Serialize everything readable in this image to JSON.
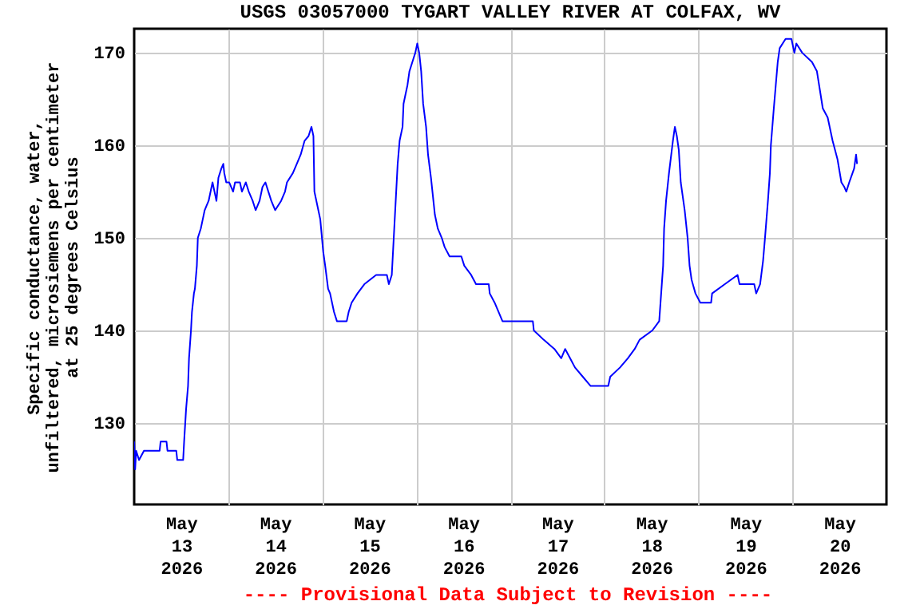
{
  "chart_data": {
    "type": "line",
    "title": "USGS 03057000 TYGART VALLEY RIVER AT COLFAX, WV",
    "ylabel": "Specific conductance, water,\nunfiltered, microsiemens per centimeter\nat 25 degrees Celsius",
    "annotations": [
      "---- Provisional Data Subject to Revision ----"
    ],
    "x": [
      "2026-05-13T00:00",
      "2026-05-13T00:15",
      "2026-05-13T00:30",
      "2026-05-13T01:15",
      "2026-05-13T02:30",
      "2026-05-13T06:30",
      "2026-05-13T06:45",
      "2026-05-13T08:15",
      "2026-05-13T08:30",
      "2026-05-13T10:45",
      "2026-05-13T11:00",
      "2026-05-13T12:30",
      "2026-05-13T12:45",
      "2026-05-13T13:15",
      "2026-05-13T13:45",
      "2026-05-13T14:00",
      "2026-05-13T14:30",
      "2026-05-13T14:45",
      "2026-05-13T15:15",
      "2026-05-13T15:30",
      "2026-05-13T16:00",
      "2026-05-13T16:15",
      "2026-05-13T17:00",
      "2026-05-13T17:30",
      "2026-05-13T18:00",
      "2026-05-13T18:30",
      "2026-05-13T19:00",
      "2026-05-13T19:30",
      "2026-05-13T20:00",
      "2026-05-13T20:45",
      "2026-05-13T21:00",
      "2026-05-13T21:30",
      "2026-05-13T22:15",
      "2026-05-13T22:45",
      "2026-05-13T23:00",
      "2026-05-13T23:30",
      "2026-05-14T00:15",
      "2026-05-14T01:15",
      "2026-05-14T01:45",
      "2026-05-14T03:00",
      "2026-05-14T03:30",
      "2026-05-14T04:30",
      "2026-05-14T05:15",
      "2026-05-14T06:15",
      "2026-05-14T07:00",
      "2026-05-14T08:00",
      "2026-05-14T08:45",
      "2026-05-14T09:30",
      "2026-05-14T10:15",
      "2026-05-14T11:00",
      "2026-05-14T12:00",
      "2026-05-14T13:30",
      "2026-05-14T14:30",
      "2026-05-14T15:00",
      "2026-05-14T16:30",
      "2026-05-14T17:30",
      "2026-05-14T18:30",
      "2026-05-14T19:30",
      "2026-05-14T20:30",
      "2026-05-14T21:15",
      "2026-05-14T21:45",
      "2026-05-14T22:00",
      "2026-05-14T23:00",
      "2026-05-14T23:30",
      "2026-05-15T00:15",
      "2026-05-15T00:45",
      "2026-05-15T01:30",
      "2026-05-15T02:00",
      "2026-05-15T03:00",
      "2026-05-15T03:45",
      "2026-05-15T06:15",
      "2026-05-15T06:45",
      "2026-05-15T07:30",
      "2026-05-15T09:00",
      "2026-05-15T10:45",
      "2026-05-15T13:45",
      "2026-05-15T16:30",
      "2026-05-15T17:00",
      "2026-05-15T17:45",
      "2026-05-15T18:15",
      "2026-05-15T18:45",
      "2026-05-15T19:15",
      "2026-05-15T19:45",
      "2026-05-15T20:30",
      "2026-05-15T20:45",
      "2026-05-15T21:15",
      "2026-05-15T21:45",
      "2026-05-15T22:15",
      "2026-05-15T23:00",
      "2026-05-15T23:45",
      "2026-05-16T00:15",
      "2026-05-16T00:45",
      "2026-05-16T01:15",
      "2026-05-16T01:45",
      "2026-05-16T02:30",
      "2026-05-16T03:00",
      "2026-05-16T03:45",
      "2026-05-16T04:15",
      "2026-05-16T04:45",
      "2026-05-16T05:30",
      "2026-05-16T06:30",
      "2026-05-16T07:15",
      "2026-05-16T08:30",
      "2026-05-16T11:30",
      "2026-05-16T12:15",
      "2026-05-16T14:00",
      "2026-05-16T15:15",
      "2026-05-16T18:30",
      "2026-05-16T18:45",
      "2026-05-16T20:00",
      "2026-05-16T22:00",
      "2026-05-17T05:45",
      "2026-05-17T06:00",
      "2026-05-17T08:30",
      "2026-05-17T11:15",
      "2026-05-17T13:00",
      "2026-05-17T14:00",
      "2026-05-17T15:15",
      "2026-05-17T16:30",
      "2026-05-17T18:30",
      "2026-05-17T20:30",
      "2026-05-18T01:00",
      "2026-05-18T01:30",
      "2026-05-18T04:00",
      "2026-05-18T06:00",
      "2026-05-18T07:45",
      "2026-05-18T09:00",
      "2026-05-18T12:15",
      "2026-05-18T14:00",
      "2026-05-18T14:30",
      "2026-05-18T15:00",
      "2026-05-18T15:15",
      "2026-05-18T15:45",
      "2026-05-18T16:30",
      "2026-05-18T17:30",
      "2026-05-18T18:00",
      "2026-05-18T18:30",
      "2026-05-18T19:00",
      "2026-05-18T19:30",
      "2026-05-18T20:30",
      "2026-05-18T21:15",
      "2026-05-18T21:45",
      "2026-05-18T22:15",
      "2026-05-18T23:15",
      "2026-05-19T00:30",
      "2026-05-19T03:15",
      "2026-05-19T03:30",
      "2026-05-19T06:45",
      "2026-05-19T10:00",
      "2026-05-19T10:30",
      "2026-05-19T14:15",
      "2026-05-19T14:45",
      "2026-05-19T15:45",
      "2026-05-19T16:30",
      "2026-05-19T17:00",
      "2026-05-19T17:45",
      "2026-05-19T18:15",
      "2026-05-19T18:30",
      "2026-05-19T19:15",
      "2026-05-19T19:45",
      "2026-05-19T20:15",
      "2026-05-19T20:45",
      "2026-05-19T22:15",
      "2026-05-19T23:45",
      "2026-05-20T00:30",
      "2026-05-20T01:00",
      "2026-05-20T02:30",
      "2026-05-20T05:00",
      "2026-05-20T06:15",
      "2026-05-20T07:00",
      "2026-05-20T07:45",
      "2026-05-20T09:00",
      "2026-05-20T10:15",
      "2026-05-20T11:30",
      "2026-05-20T12:30",
      "2026-05-20T13:15",
      "2026-05-20T13:45",
      "2026-05-20T14:30",
      "2026-05-20T15:45",
      "2026-05-20T16:15",
      "2026-05-20T16:30"
    ],
    "series": [
      {
        "color": "#0000ff",
        "values": [
          128,
          125,
          127,
          126,
          127,
          127,
          128,
          128,
          127,
          127,
          126,
          126,
          128,
          131.5,
          134,
          137,
          140,
          142,
          144,
          144.5,
          147,
          150,
          151,
          152,
          153,
          153.5,
          154,
          155,
          156,
          154.5,
          154,
          156.5,
          157.5,
          158,
          157,
          156,
          156,
          155,
          156,
          156,
          155,
          156,
          155,
          154,
          153,
          154,
          155.5,
          156,
          155,
          154,
          153,
          154,
          155,
          156,
          157,
          158,
          159,
          160.5,
          161,
          162,
          161,
          155,
          153,
          152,
          148.5,
          147,
          144.5,
          144,
          142,
          141,
          141,
          142,
          143,
          144,
          145,
          146,
          146,
          145,
          146,
          150,
          154,
          158,
          160.5,
          162,
          164.5,
          165.5,
          166.5,
          168,
          169,
          170,
          171,
          170,
          168,
          164.5,
          162,
          159,
          156.5,
          154.5,
          152.5,
          151,
          150,
          149,
          148,
          148,
          147,
          146,
          145,
          145,
          144,
          143,
          141,
          141,
          140,
          139,
          138,
          137,
          138,
          137,
          136,
          135,
          134,
          134,
          135,
          136,
          137,
          138,
          139,
          140,
          141,
          144,
          147,
          151,
          154,
          157,
          160.5,
          162,
          161,
          159.5,
          156,
          153,
          150,
          147,
          145.5,
          144,
          143,
          143,
          144,
          145,
          146,
          145,
          145,
          144,
          145,
          147.5,
          150,
          154,
          157,
          160,
          164,
          166.5,
          169,
          170.5,
          171.5,
          171.5,
          170,
          171,
          170,
          169,
          168,
          166,
          164,
          163,
          160.5,
          158.5,
          156,
          155.5,
          155,
          156,
          157.5,
          159,
          158
        ]
      }
    ],
    "xlim": [
      "2026-05-13T00:00",
      "2026-05-21T00:00"
    ],
    "xticks": [
      {
        "value": "2026-05-13T12:00",
        "label": "May\n13\n2026"
      },
      {
        "value": "2026-05-14T12:00",
        "label": "May\n14\n2026"
      },
      {
        "value": "2026-05-15T12:00",
        "label": "May\n15\n2026"
      },
      {
        "value": "2026-05-16T12:00",
        "label": "May\n16\n2026"
      },
      {
        "value": "2026-05-17T12:00",
        "label": "May\n17\n2026"
      },
      {
        "value": "2026-05-18T12:00",
        "label": "May\n18\n2026"
      },
      {
        "value": "2026-05-19T12:00",
        "label": "May\n19\n2026"
      },
      {
        "value": "2026-05-20T12:00",
        "label": "May\n20\n2026"
      },
      {
        "value": "2026-05-14T00:00",
        "label": null
      },
      {
        "value": "2026-05-15T00:00",
        "label": null
      },
      {
        "value": "2026-05-16T00:00",
        "label": null
      },
      {
        "value": "2026-05-17T00:00",
        "label": null
      },
      {
        "value": "2026-05-18T00:00",
        "label": null
      },
      {
        "value": "2026-05-19T00:00",
        "label": null
      },
      {
        "value": "2026-05-20T00:00",
        "label": null
      }
    ],
    "ylim": [
      121.2,
      172.6
    ],
    "yticks": [
      130,
      140,
      150,
      160,
      170
    ],
    "grid": true
  }
}
